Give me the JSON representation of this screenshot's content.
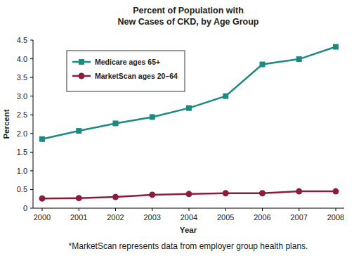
{
  "chart_data": {
    "type": "line",
    "title": [
      "Percent of Population with",
      "New Cases of CKD, by Age Group"
    ],
    "x_label": "Year",
    "y_label": "Percent",
    "annotations": [
      "*MarketScan represents data from employer group health plans."
    ],
    "categories": [
      "2000",
      "2001",
      "2002",
      "2003",
      "2004",
      "2005",
      "2006",
      "2007",
      "2008"
    ],
    "series": [
      {
        "name": "Medicare ages 65+",
        "color": "#1d8a82",
        "marker": "square",
        "values": [
          1.85,
          2.07,
          2.27,
          2.44,
          2.68,
          3.0,
          3.85,
          3.99,
          4.32
        ]
      },
      {
        "name": "MarketScan ages 20–64",
        "color": "#8c1c3c",
        "marker": "circle",
        "values": [
          0.26,
          0.27,
          0.3,
          0.36,
          0.38,
          0.4,
          0.4,
          0.45,
          0.45
        ]
      }
    ],
    "ylim": [
      0,
      4.5
    ],
    "yticks": [
      0,
      0.5,
      {
        "value": 1,
        "label": "1.0"
      },
      1.5,
      {
        "value": 2,
        "label": "2.0"
      },
      2.5,
      {
        "value": 3,
        "label": "3.0"
      },
      3.5,
      {
        "value": 4,
        "label": "4.0"
      },
      4.5
    ],
    "grid": false,
    "legend": "upper left"
  }
}
